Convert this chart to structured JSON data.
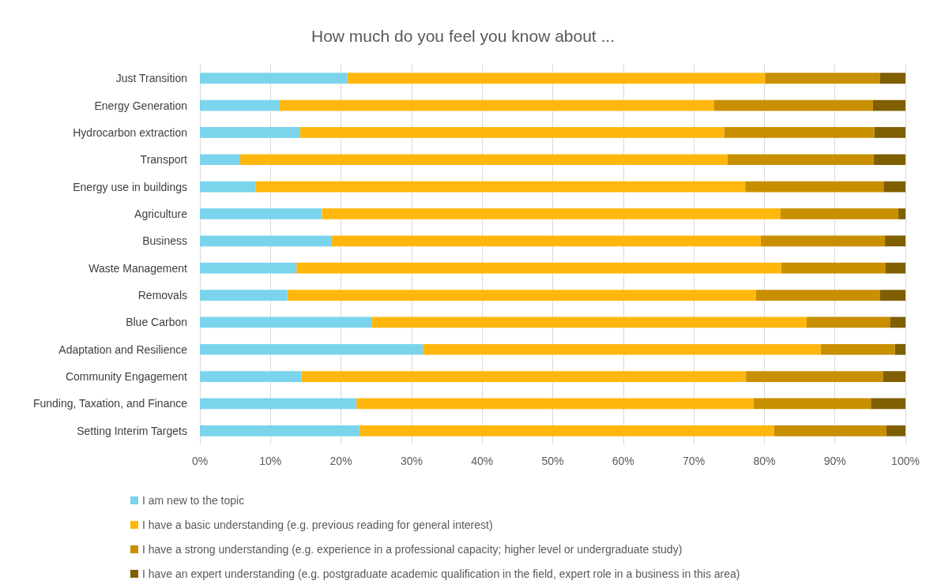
{
  "chart_data": {
    "type": "bar",
    "orientation": "horizontal",
    "stacked": true,
    "title": "How much do you feel you know about ...",
    "categories": [
      "Just Transition",
      "Energy Generation",
      "Hydrocarbon extraction",
      "Transport",
      "Energy use in buildings",
      "Agriculture",
      "Business",
      "Waste Management",
      "Removals",
      "Blue Carbon",
      "Adaptation and Resilience",
      "Community Engagement",
      "Funding, Taxation, and Finance",
      "Setting Interim Targets"
    ],
    "series": [
      {
        "name": "I am new to the topic",
        "color": "#7ad4ec",
        "values": [
          20.9,
          11.3,
          14.2,
          5.7,
          7.9,
          17.3,
          18.6,
          13.7,
          12.4,
          24.4,
          31.6,
          14.4,
          22.2,
          22.6
        ]
      },
      {
        "name": "I have a basic understanding (e.g. previous reading for general interest)",
        "color": "#ffb70e",
        "values": [
          59.2,
          61.6,
          60.1,
          69.1,
          69.4,
          65.0,
          60.9,
          68.7,
          66.4,
          61.6,
          56.4,
          63.0,
          56.3,
          58.8
        ]
      },
      {
        "name": "I have a strong understanding (e.g. experience in a professional capacity; higher level or undergraduate study)",
        "color": "#c88f00",
        "values": [
          16.3,
          22.5,
          21.3,
          20.7,
          19.6,
          16.7,
          17.6,
          14.8,
          17.6,
          11.8,
          10.5,
          19.4,
          16.6,
          15.9
        ]
      },
      {
        "name": "I have an expert understanding (e.g. postgraduate academic qualification in the field, expert role in a business in this area)",
        "color": "#7f5f00",
        "values": [
          3.6,
          4.6,
          4.4,
          4.5,
          3.1,
          1.0,
          2.9,
          2.8,
          3.6,
          2.2,
          1.5,
          3.2,
          4.9,
          2.7
        ]
      }
    ],
    "xlim": [
      0,
      100
    ],
    "xticks": [
      {
        "value": 0,
        "label": "0%"
      },
      {
        "value": 10,
        "label": "10%"
      },
      {
        "value": 20,
        "label": "20%"
      },
      {
        "value": 30,
        "label": "30%"
      },
      {
        "value": 40,
        "label": "40%"
      },
      {
        "value": 50,
        "label": "50%"
      },
      {
        "value": 60,
        "label": "60%"
      },
      {
        "value": 70,
        "label": "70%"
      },
      {
        "value": 80,
        "label": "80%"
      },
      {
        "value": 90,
        "label": "90%"
      },
      {
        "value": 100,
        "label": "100%"
      }
    ],
    "grid": "x",
    "legend": "bottom"
  }
}
